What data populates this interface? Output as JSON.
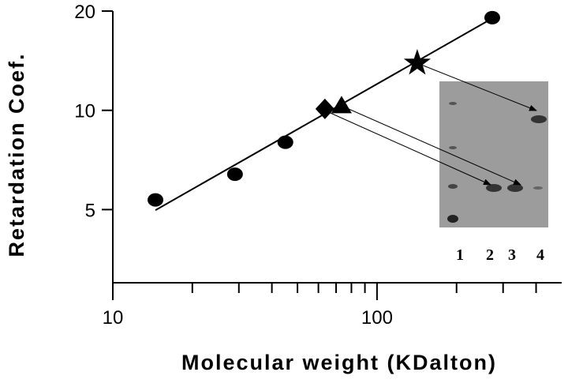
{
  "chart_data": {
    "type": "scatter",
    "x_label": "Molecular weight (KDalton)",
    "y_label": "Retardation Coef.",
    "xlim": [
      10,
      500
    ],
    "ylim": [
      3,
      20
    ],
    "xticks": [
      10,
      100
    ],
    "yticks": [
      5,
      10,
      20
    ],
    "x_minor_ticks": [
      20,
      30,
      40,
      50,
      60,
      70,
      80,
      90,
      200,
      300,
      400
    ],
    "x_log": true,
    "y_log": true,
    "series": [
      {
        "marker": "circle",
        "color": "#000000",
        "x": [
          14.5,
          29,
          45,
          273
        ],
        "values": [
          5.35,
          6.4,
          8.0,
          19.1
        ]
      },
      {
        "marker": "diamond",
        "color": "#000000",
        "x": [
          63.5
        ],
        "values": [
          10.1
        ]
      },
      {
        "marker": "triangle",
        "color": "#000000",
        "x": [
          73.4
        ],
        "values": [
          10.3
        ]
      },
      {
        "marker": "star",
        "color": "#000000",
        "x": [
          142
        ],
        "values": [
          13.9
        ]
      }
    ],
    "fit_line": {
      "color": "#000000",
      "x": [
        14.5,
        273
      ],
      "values": [
        4.98,
        19.0
      ]
    },
    "inset_lane_labels": [
      "1",
      "2",
      "3",
      "4"
    ]
  }
}
